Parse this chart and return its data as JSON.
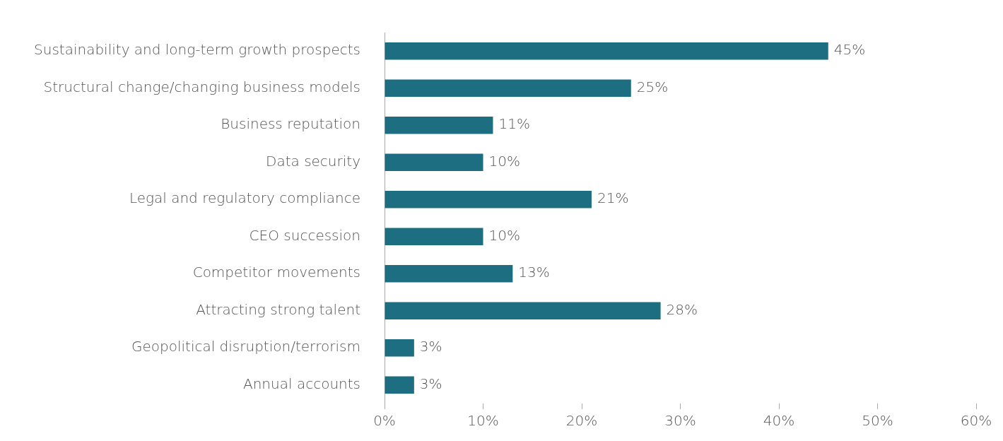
{
  "chart_data": {
    "type": "bar",
    "orientation": "horizontal",
    "categories": [
      "Sustainability and long-term growth prospects",
      "Structural change/changing business models",
      "Business reputation",
      "Data security",
      "Legal and regulatory compliance",
      "CEO succession",
      "Competitor movements",
      "Attracting strong talent",
      "Geopolitical disruption/terrorism",
      "Annual accounts"
    ],
    "values": [
      45,
      25,
      11,
      10,
      21,
      10,
      13,
      28,
      3,
      3
    ],
    "value_labels": [
      "45%",
      "25%",
      "11%",
      "10%",
      "21%",
      "10%",
      "13%",
      "28%",
      "3%",
      "3%"
    ],
    "color": "#1d6e80",
    "xlim": [
      0,
      60
    ],
    "xticks": [
      {
        "value": 0,
        "label": "0%"
      },
      {
        "value": 10,
        "label": "10%"
      },
      {
        "value": 20,
        "label": "20%"
      },
      {
        "value": 30,
        "label": "30%"
      },
      {
        "value": 40,
        "label": "40%"
      },
      {
        "value": 50,
        "label": "50%"
      },
      {
        "value": 60,
        "label": "60%"
      }
    ],
    "grid": false,
    "legend": false
  }
}
